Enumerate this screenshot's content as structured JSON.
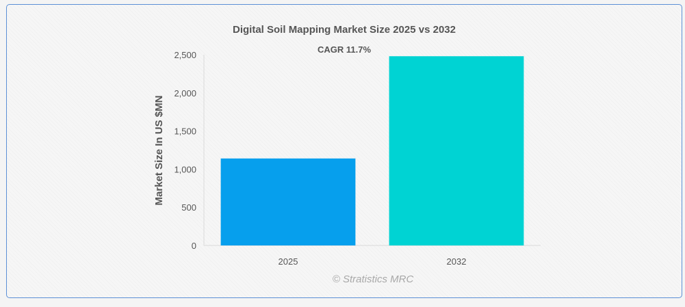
{
  "chart_data": {
    "type": "bar",
    "title": "Digital Soil Mapping Market Size 2025 vs 2032",
    "annotation": "CAGR 11.7%",
    "categories": [
      "2025",
      "2032"
    ],
    "values": [
      1140,
      2480
    ],
    "colors": [
      "#069fed",
      "#00d3d3"
    ],
    "xlabel": "",
    "ylabel": "Market Size In US $MN",
    "ylim": [
      0,
      2500
    ],
    "yticks": [
      0,
      500,
      1000,
      1500,
      2000,
      2500
    ],
    "ytick_labels": [
      "0",
      "500",
      "1,000",
      "1,500",
      "2,000",
      "2,500"
    ],
    "grid": false,
    "legend": "none"
  },
  "source_text": "© Stratistics MRC"
}
